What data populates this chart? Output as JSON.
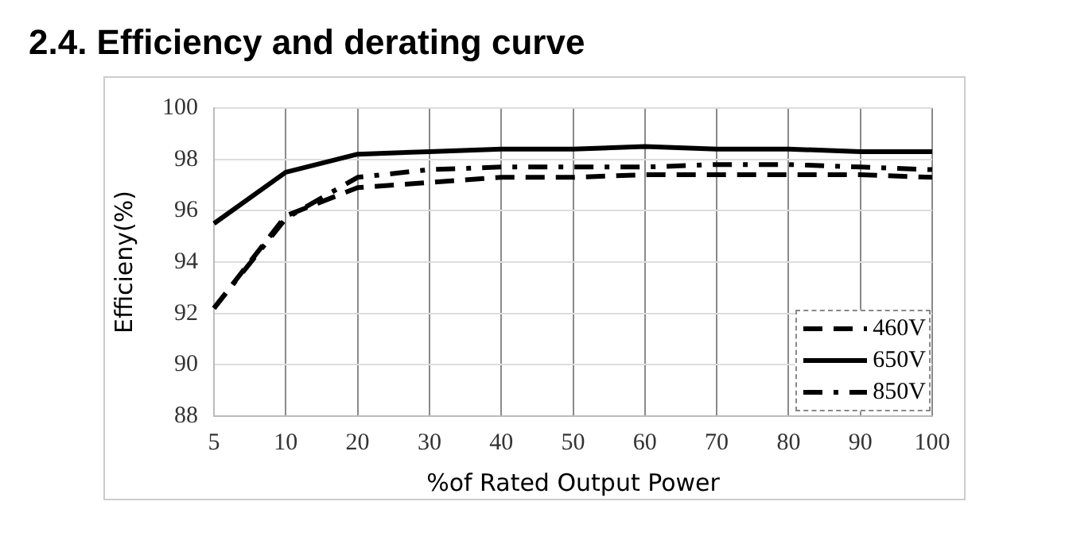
{
  "chart_data": {
    "type": "line",
    "title": "2.4. Efficiency and derating curve",
    "xlabel": "%of Rated Output Power",
    "ylabel": "Efficieny(%)",
    "categories": [
      "5",
      "10",
      "20",
      "30",
      "40",
      "50",
      "60",
      "70",
      "80",
      "90",
      "100"
    ],
    "series": [
      {
        "name": "460V",
        "color": "#000000",
        "line_style": "dashed",
        "values": [
          92.2,
          95.8,
          96.9,
          97.1,
          97.3,
          97.3,
          97.4,
          97.4,
          97.4,
          97.4,
          97.3
        ]
      },
      {
        "name": "650V",
        "color": "#000000",
        "line_style": "solid",
        "values": [
          95.5,
          97.5,
          98.2,
          98.3,
          98.4,
          98.4,
          98.5,
          98.4,
          98.4,
          98.3,
          98.3
        ]
      },
      {
        "name": "850V",
        "color": "#000000",
        "line_style": "dotted",
        "values": [
          92.2,
          95.7,
          97.3,
          97.6,
          97.7,
          97.7,
          97.7,
          97.8,
          97.8,
          97.7,
          97.6
        ]
      }
    ],
    "ylim": [
      88,
      100
    ],
    "yticks": [
      88,
      90,
      92,
      94,
      96,
      98,
      100
    ],
    "grid": true,
    "legend": "bottom right",
    "marker": "none"
  }
}
